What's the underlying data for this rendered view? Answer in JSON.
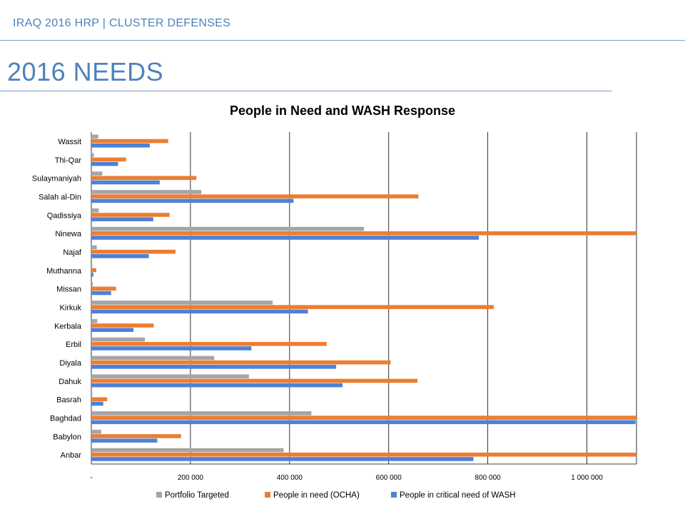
{
  "header": {
    "title": "IRAQ 2016 HRP | CLUSTER DEFENSES",
    "page_title": "2016 NEEDS"
  },
  "colors": {
    "accent": "#4f81bd",
    "portfolio": "#a5a5a5",
    "ocha": "#ed7d31",
    "wash": "#4f81d4"
  },
  "chart_data": {
    "type": "bar",
    "orientation": "horizontal",
    "title": "People in Need and WASH Response",
    "categories": [
      "Wassit",
      "Thi-Qar",
      "Sulaymaniyah",
      "Salah al-Din",
      "Qadissiya",
      "Ninewa",
      "Najaf",
      "Muthanna",
      "Missan",
      "Kirkuk",
      "Kerbala",
      "Erbil",
      "Diyala",
      "Dahuk",
      "Basrah",
      "Baghdad",
      "Babylon",
      "Anbar"
    ],
    "series": [
      {
        "name": "Portfolio Targeted",
        "values": [
          14000,
          5000,
          22000,
          222000,
          15000,
          550000,
          11000,
          2000,
          3000,
          366000,
          12000,
          108000,
          248000,
          318000,
          2000,
          444000,
          20000,
          388000
        ]
      },
      {
        "name": "People in need (OCHA)",
        "values": [
          155000,
          70000,
          212000,
          660000,
          158000,
          1100000,
          170000,
          10000,
          50000,
          812000,
          126000,
          475000,
          604000,
          658000,
          32000,
          1100000,
          181000,
          1100000
        ]
      },
      {
        "name": "People in critical need of WASH",
        "values": [
          118000,
          54000,
          138000,
          408000,
          125000,
          782000,
          116000,
          4000,
          40000,
          437000,
          85000,
          323000,
          494000,
          507000,
          24000,
          1098000,
          133000,
          771000
        ]
      }
    ],
    "xlim": [
      0,
      1100000
    ],
    "xticks": [
      0,
      200000,
      400000,
      600000,
      800000,
      1000000
    ],
    "xtick_labels": [
      "-",
      "200 000",
      "400 000",
      "600 000",
      "800 000",
      "1 000 000"
    ],
    "grid": true,
    "legend_position": "bottom"
  }
}
